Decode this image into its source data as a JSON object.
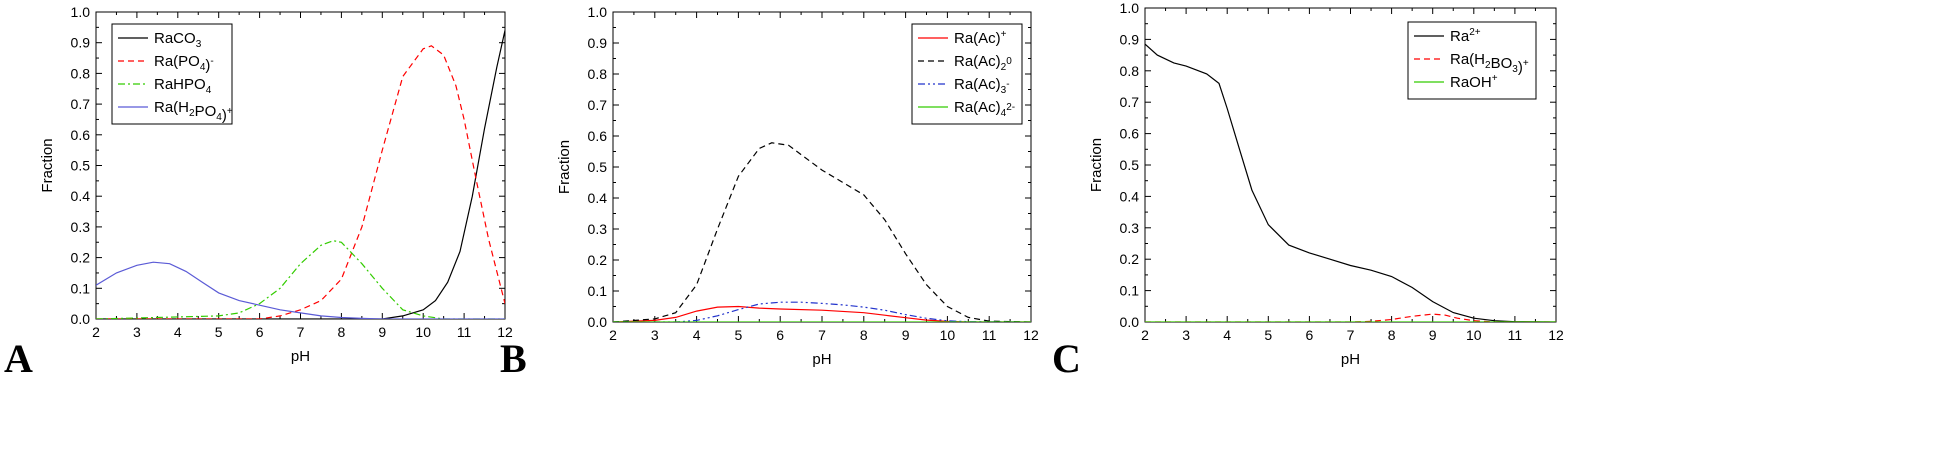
{
  "chart_data": [
    {
      "type": "line",
      "panel": "A",
      "xlabel": "pH",
      "ylabel": "Fraction",
      "xlim": [
        2,
        12
      ],
      "ylim": [
        0,
        1.0
      ],
      "xticks": [
        "2",
        "3",
        "4",
        "5",
        "6",
        "7",
        "8",
        "9",
        "10",
        "11",
        "12"
      ],
      "yticks": [
        "0.0",
        "0.1",
        "0.2",
        "0.3",
        "0.4",
        "0.5",
        "0.6",
        "0.7",
        "0.8",
        "0.9",
        "1.0"
      ],
      "legend_position": "top-left",
      "series": [
        {
          "name": "RaCO3",
          "label_main": "RaCO",
          "label_sub": "3",
          "label_sup": "",
          "label_tail": "",
          "color": "#000000",
          "dash": "solid",
          "x": [
            2,
            9,
            9.5,
            10,
            10.3,
            10.6,
            10.9,
            11.2,
            11.5,
            11.8,
            12
          ],
          "y": [
            0,
            0,
            0.01,
            0.03,
            0.06,
            0.12,
            0.22,
            0.4,
            0.62,
            0.82,
            0.94
          ]
        },
        {
          "name": "Ra(PO4)-",
          "label_main": "Ra(PO",
          "label_sub": "4",
          "label_sup": "-",
          "label_tail": ")",
          "color": "#ff0000",
          "dash": "dashed",
          "x": [
            2,
            6,
            6.5,
            7,
            7.5,
            8,
            8.5,
            9,
            9.5,
            10,
            10.2,
            10.5,
            10.8,
            11,
            11.3,
            11.6,
            12
          ],
          "y": [
            0,
            0,
            0.01,
            0.03,
            0.06,
            0.13,
            0.3,
            0.55,
            0.79,
            0.88,
            0.89,
            0.86,
            0.76,
            0.65,
            0.45,
            0.26,
            0.05
          ]
        },
        {
          "name": "RaHPO4",
          "label_main": "RaHPO",
          "label_sub": "4",
          "label_sup": "",
          "label_tail": "",
          "color": "#33cc00",
          "dash": "dashdot",
          "x": [
            2,
            5,
            5.5,
            6,
            6.5,
            7,
            7.5,
            7.8,
            8,
            8.5,
            9,
            9.5,
            10,
            10.5,
            12
          ],
          "y": [
            0,
            0.01,
            0.02,
            0.05,
            0.1,
            0.18,
            0.24,
            0.255,
            0.25,
            0.18,
            0.1,
            0.03,
            0.01,
            0,
            0
          ]
        },
        {
          "name": "Ra(H2PO4)+",
          "label_main": "Ra(H",
          "label_sub": "2",
          "label_sup": "+",
          "label_tail": "PO4)",
          "color": "#5b5bd6",
          "dash": "solid",
          "x": [
            2,
            2.5,
            3,
            3.4,
            3.8,
            4.2,
            4.6,
            5,
            5.5,
            6,
            6.5,
            7,
            7.5,
            8,
            8.5,
            9,
            12
          ],
          "y": [
            0.11,
            0.15,
            0.175,
            0.185,
            0.18,
            0.155,
            0.12,
            0.085,
            0.06,
            0.045,
            0.03,
            0.02,
            0.01,
            0.005,
            0.002,
            0,
            0
          ]
        }
      ]
    },
    {
      "type": "line",
      "panel": "B",
      "xlabel": "pH",
      "ylabel": "Fraction",
      "xlim": [
        2,
        12
      ],
      "ylim": [
        0,
        1.0
      ],
      "xticks": [
        "2",
        "3",
        "4",
        "5",
        "6",
        "7",
        "8",
        "9",
        "10",
        "11",
        "12"
      ],
      "yticks": [
        "0.0",
        "0.1",
        "0.2",
        "0.3",
        "0.4",
        "0.5",
        "0.6",
        "0.7",
        "0.8",
        "0.9",
        "1.0"
      ],
      "legend_position": "top-right",
      "series": [
        {
          "name": "Ra(Ac)+",
          "label_main": "Ra(Ac)",
          "label_sub": "",
          "label_sup": "+",
          "color": "#ff0000",
          "dash": "solid",
          "x": [
            2,
            3,
            3.5,
            4,
            4.5,
            5,
            5.5,
            6,
            7,
            8,
            8.5,
            9,
            9.5,
            10,
            10.5,
            12
          ],
          "y": [
            0,
            0.005,
            0.015,
            0.035,
            0.048,
            0.05,
            0.045,
            0.042,
            0.038,
            0.03,
            0.022,
            0.014,
            0.006,
            0.002,
            0,
            0
          ]
        },
        {
          "name": "Ra(Ac)2 0",
          "label_main": "Ra(Ac)",
          "label_sub": "2",
          "label_sup": "0",
          "color": "#000000",
          "dash": "dashed",
          "x": [
            2,
            3,
            3.5,
            4,
            4.5,
            5,
            5.5,
            5.8,
            6.2,
            6.5,
            7,
            7.5,
            8,
            8.5,
            9,
            9.5,
            10,
            10.5,
            11,
            12
          ],
          "y": [
            0,
            0.01,
            0.03,
            0.12,
            0.3,
            0.47,
            0.56,
            0.578,
            0.57,
            0.54,
            0.49,
            0.45,
            0.41,
            0.33,
            0.22,
            0.12,
            0.05,
            0.015,
            0.003,
            0
          ]
        },
        {
          "name": "Ra(Ac)3 -",
          "label_main": "Ra(Ac)",
          "label_sub": "3",
          "label_sup": "-",
          "color": "#2233cc",
          "dash": "dashdotdot",
          "x": [
            2,
            3.5,
            4,
            4.5,
            5,
            5.5,
            6,
            6.5,
            7,
            7.5,
            8,
            8.5,
            9,
            9.5,
            10,
            10.5,
            12
          ],
          "y": [
            0,
            0,
            0.005,
            0.02,
            0.04,
            0.058,
            0.064,
            0.064,
            0.06,
            0.055,
            0.048,
            0.038,
            0.024,
            0.012,
            0.004,
            0.001,
            0
          ]
        },
        {
          "name": "Ra(Ac)4 2-",
          "label_main": "Ra(Ac)",
          "label_sub": "4",
          "label_sup": "2-",
          "color": "#33cc00",
          "dash": "solid",
          "x": [
            2,
            12
          ],
          "y": [
            0,
            0
          ]
        }
      ]
    },
    {
      "type": "line",
      "panel": "C",
      "xlabel": "pH",
      "ylabel": "Fraction",
      "xlim": [
        2,
        12
      ],
      "ylim": [
        0,
        1.0
      ],
      "xticks": [
        "2",
        "3",
        "4",
        "5",
        "6",
        "7",
        "8",
        "9",
        "10",
        "11",
        "12"
      ],
      "yticks": [
        "0.0",
        "0.1",
        "0.2",
        "0.3",
        "0.4",
        "0.5",
        "0.6",
        "0.7",
        "0.8",
        "0.9",
        "1.0"
      ],
      "legend_position": "top-right",
      "series": [
        {
          "name": "Ra2+",
          "label_main": "Ra",
          "label_sub": "",
          "label_sup": "2+",
          "color": "#000000",
          "dash": "solid",
          "x": [
            2,
            2.3,
            2.7,
            3,
            3.5,
            3.8,
            4,
            4.3,
            4.6,
            5,
            5.5,
            6,
            6.5,
            7,
            7.5,
            8,
            8.5,
            9,
            9.5,
            10,
            10.5,
            11,
            12
          ],
          "y": [
            0.885,
            0.85,
            0.825,
            0.815,
            0.79,
            0.76,
            0.68,
            0.55,
            0.42,
            0.31,
            0.245,
            0.22,
            0.2,
            0.18,
            0.165,
            0.145,
            0.11,
            0.065,
            0.03,
            0.012,
            0.004,
            0.001,
            0
          ]
        },
        {
          "name": "Ra(H2BO3)+",
          "label_main": "Ra(H",
          "label_sub": "2",
          "label_sup": "+",
          "label_tail": "BO3)",
          "color": "#ff0000",
          "dash": "dashed",
          "x": [
            2,
            7,
            7.5,
            8,
            8.5,
            9,
            9.3,
            9.6,
            10,
            10.5,
            12
          ],
          "y": [
            0,
            0,
            0.002,
            0.008,
            0.018,
            0.025,
            0.022,
            0.012,
            0.004,
            0,
            0
          ]
        },
        {
          "name": "RaOH+",
          "label_main": "RaOH",
          "label_sub": "",
          "label_sup": "+",
          "color": "#33cc00",
          "dash": "solid",
          "x": [
            2,
            12
          ],
          "y": [
            0,
            0
          ]
        }
      ]
    }
  ],
  "panel_letters": [
    "A",
    "B",
    "C"
  ]
}
